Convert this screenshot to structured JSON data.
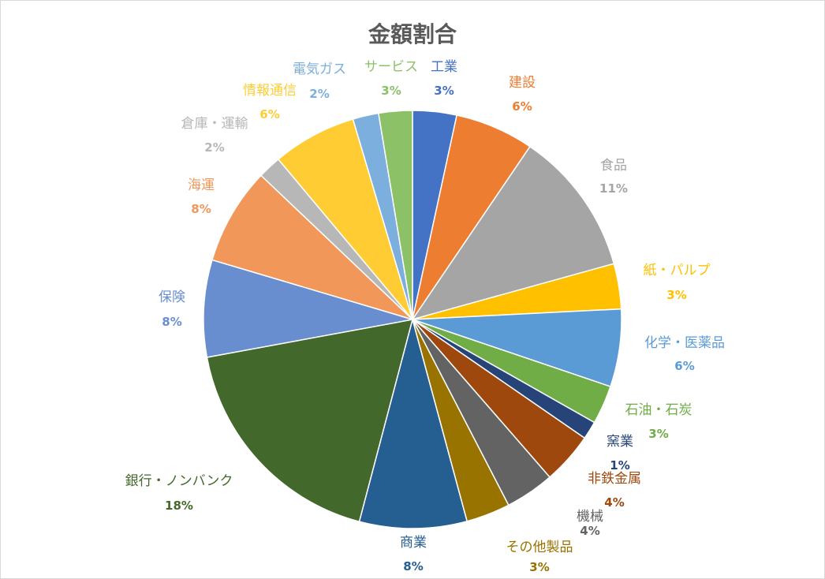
{
  "chart_data": {
    "type": "pie",
    "title": "金額割合",
    "start_angle": "top, clockwise",
    "slices": [
      {
        "label": "工業",
        "value": 3.4,
        "pct_label": "3%",
        "color": "#4472C4"
      },
      {
        "label": "建設",
        "value": 6.1,
        "pct_label": "6%",
        "color": "#ED7D31"
      },
      {
        "label": "食品",
        "value": 11.2,
        "pct_label": "11%",
        "color": "#A5A5A5"
      },
      {
        "label": "紙・パルプ",
        "value": 3.5,
        "pct_label": "3%",
        "color": "#FFC000"
      },
      {
        "label": "化学・医薬品",
        "value": 6.0,
        "pct_label": "6%",
        "color": "#5B9BD5"
      },
      {
        "label": "石油・石炭",
        "value": 3.0,
        "pct_label": "3%",
        "color": "#70AD47"
      },
      {
        "label": "窯業",
        "value": 1.4,
        "pct_label": "1%",
        "color": "#264478"
      },
      {
        "label": "非鉄金属",
        "value": 4.0,
        "pct_label": "4%",
        "color": "#9E480E"
      },
      {
        "label": "機械",
        "value": 3.8,
        "pct_label": "4%",
        "color": "#636363"
      },
      {
        "label": "その他製品",
        "value": 3.4,
        "pct_label": "3%",
        "color": "#997300"
      },
      {
        "label": "商業",
        "value": 8.3,
        "pct_label": "8%",
        "color": "#255E91"
      },
      {
        "label": "銀行・ノンバンク",
        "value": 18.0,
        "pct_label": "18%",
        "color": "#43682B"
      },
      {
        "label": "保険",
        "value": 7.5,
        "pct_label": "8%",
        "color": "#698ED0"
      },
      {
        "label": "海運",
        "value": 7.5,
        "pct_label": "8%",
        "color": "#F1975A"
      },
      {
        "label": "倉庫・運輸",
        "value": 1.8,
        "pct_label": "2%",
        "color": "#B7B7B7"
      },
      {
        "label": "情報通信",
        "value": 6.5,
        "pct_label": "6%",
        "color": "#FFCD33"
      },
      {
        "label": "電気ガス",
        "value": 2.0,
        "pct_label": "2%",
        "color": "#7CAFDD"
      },
      {
        "label": "サービス",
        "value": 2.6,
        "pct_label": "3%",
        "color": "#8CC168"
      }
    ]
  }
}
